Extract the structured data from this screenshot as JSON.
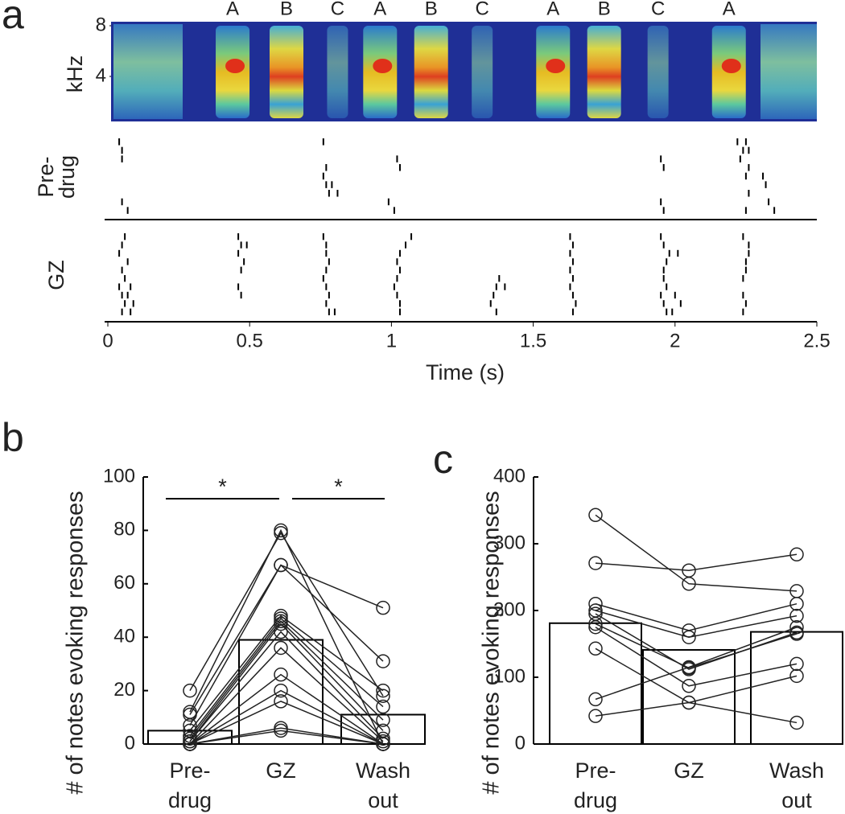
{
  "chart_data": [
    {
      "type": "spectrogram",
      "panel": "a",
      "ylabel": "kHz",
      "ylim": [
        0,
        8
      ],
      "yticks": [
        4,
        8
      ],
      "xlim": [
        0,
        2.5
      ],
      "notes": [
        {
          "label": "A",
          "time": 0.44
        },
        {
          "label": "B",
          "time": 0.63
        },
        {
          "label": "C",
          "time": 0.81
        },
        {
          "label": "A",
          "time": 0.96
        },
        {
          "label": "B",
          "time": 1.14
        },
        {
          "label": "C",
          "time": 1.32
        },
        {
          "label": "A",
          "time": 1.57
        },
        {
          "label": "B",
          "time": 1.75
        },
        {
          "label": "C",
          "time": 1.94
        },
        {
          "label": "A",
          "time": 2.19
        }
      ]
    },
    {
      "type": "raster",
      "xlabel": "Time (s)",
      "xlim": [
        0,
        2.5
      ],
      "xticks": [
        0,
        0.5,
        1,
        1.5,
        2,
        2.5
      ],
      "groups": [
        {
          "label_lines": [
            "Pre-",
            "drug"
          ],
          "trials": [
            [
              0.04,
              0.76,
              2.22,
              2.25
            ],
            [
              0.05,
              2.24,
              2.26
            ],
            [
              0.05,
              1.02,
              1.95,
              2.23
            ],
            [
              0.77,
              1.03,
              1.96,
              2.26
            ],
            [
              0.76,
              2.25,
              2.31
            ],
            [
              0.77,
              0.79,
              2.32
            ],
            [
              0.78,
              0.81,
              2.26
            ],
            [
              0.05,
              0.99,
              1.95,
              2.33
            ],
            [
              0.07,
              1.01,
              1.96,
              2.25,
              2.35
            ]
          ]
        },
        {
          "label_lines": [
            "GZ"
          ],
          "trials": [
            [
              0.06,
              0.46,
              0.76,
              1.07,
              1.63,
              1.95,
              2.24
            ],
            [
              0.05,
              0.47,
              0.49,
              0.77,
              1.05,
              1.64,
              1.96,
              2.26
            ],
            [
              0.04,
              0.46,
              0.77,
              1.03,
              1.63,
              1.98,
              2.01,
              2.26
            ],
            [
              0.07,
              0.48,
              0.78,
              1.02,
              1.64,
              1.97,
              2.25
            ],
            [
              0.05,
              0.47,
              0.77,
              1.03,
              1.63,
              1.96,
              2.25
            ],
            [
              0.06,
              0.76,
              1.02,
              1.38,
              1.64,
              1.96,
              2.24
            ],
            [
              0.04,
              0.08,
              0.46,
              0.77,
              1.01,
              1.37,
              1.4,
              1.63,
              1.97
            ],
            [
              0.05,
              0.07,
              0.47,
              0.78,
              1.02,
              1.36,
              1.64,
              1.95,
              2.0,
              2.24
            ],
            [
              0.06,
              0.09,
              0.77,
              1.03,
              1.35,
              1.65,
              1.96,
              2.02,
              2.25
            ],
            [
              0.05,
              0.08,
              0.78,
              0.8,
              1.03,
              1.37,
              1.64,
              1.97,
              1.99,
              2.24
            ]
          ]
        }
      ]
    },
    {
      "type": "bar",
      "panel": "b",
      "ylabel": "# of notes evoking responses",
      "ylim": [
        0,
        100
      ],
      "yticks": [
        0,
        20,
        40,
        60,
        80,
        100
      ],
      "categories": [
        [
          "Pre-",
          "drug"
        ],
        [
          "GZ"
        ],
        [
          "Wash",
          "out"
        ]
      ],
      "values": [
        5,
        39,
        11
      ],
      "lines": [
        [
          20,
          79,
          18
        ],
        [
          12,
          80,
          0
        ],
        [
          11,
          67,
          51
        ],
        [
          7,
          67,
          31
        ],
        [
          5,
          48,
          20
        ],
        [
          3,
          47,
          14
        ],
        [
          2,
          46,
          9
        ],
        [
          1,
          42,
          2
        ],
        [
          0,
          36,
          1
        ],
        [
          0,
          26,
          0
        ],
        [
          0,
          20,
          0
        ],
        [
          0,
          16,
          0
        ],
        [
          0,
          6,
          0
        ],
        [
          0,
          5,
          0
        ],
        [
          1,
          45,
          5
        ]
      ],
      "annotations": [
        {
          "text": "*",
          "from": 0,
          "to": 1
        },
        {
          "text": "*",
          "from": 1,
          "to": 2
        }
      ]
    },
    {
      "type": "bar",
      "panel": "c",
      "ylabel": "# of notes evoking responses",
      "ylim": [
        0,
        400
      ],
      "yticks": [
        0,
        100,
        200,
        300,
        400
      ],
      "categories": [
        [
          "Pre-",
          "drug"
        ],
        [
          "GZ"
        ],
        [
          "Wash",
          "out"
        ]
      ],
      "values": [
        181,
        141,
        168
      ],
      "lines": [
        [
          343,
          240,
          229
        ],
        [
          271,
          260,
          284
        ],
        [
          210,
          170,
          210
        ],
        [
          200,
          160,
          192
        ],
        [
          195,
          112,
          167
        ],
        [
          180,
          114,
          165
        ],
        [
          175,
          87,
          120
        ],
        [
          143,
          62,
          102
        ],
        [
          67,
          115,
          175
        ],
        [
          42,
          62,
          32
        ]
      ]
    }
  ]
}
